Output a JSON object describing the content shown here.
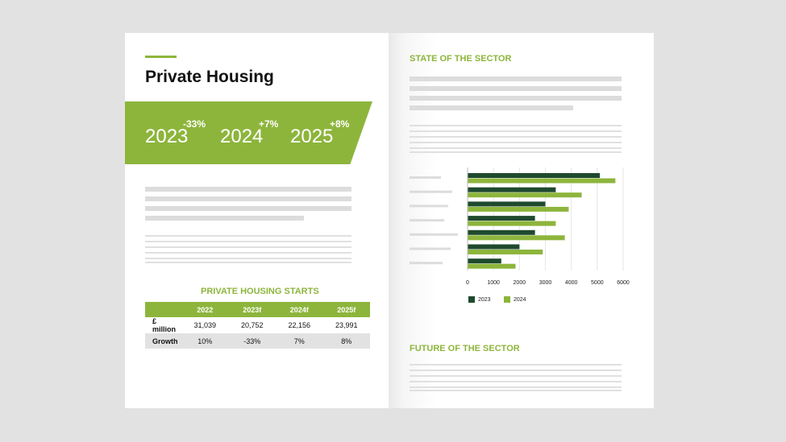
{
  "left_page": {
    "title": "Private Housing",
    "forecasts": [
      {
        "year": "2023",
        "change": "-33%"
      },
      {
        "year": "2024",
        "change": "+7%"
      },
      {
        "year": "2025",
        "change": "+8%"
      }
    ],
    "table": {
      "title": "PRIVATE HOUSING STARTS",
      "headers": [
        "",
        "2022",
        "2023f",
        "2024f",
        "2025f"
      ],
      "rows": [
        {
          "label": "£ million",
          "values": [
            "31,039",
            "20,752",
            "22,156",
            "23,991"
          ]
        },
        {
          "label": "Growth",
          "values": [
            "10%",
            "-33%",
            "7%",
            "8%"
          ]
        }
      ]
    }
  },
  "right_page": {
    "state_heading": "STATE OF THE SECTOR",
    "future_heading": "FUTURE OF THE SECTOR"
  },
  "colors": {
    "accent_green": "#8db53c",
    "dark_green": "#1e4a2e",
    "placeholder_gray": "#dcdcdc"
  },
  "chart_data": {
    "type": "bar",
    "orientation": "horizontal",
    "categories": [
      "",
      "",
      "",
      "",
      "",
      "",
      ""
    ],
    "series": [
      {
        "name": "2023",
        "color": "#1e4a2e",
        "values": [
          5100,
          3400,
          3000,
          2600,
          2600,
          2000,
          1300
        ]
      },
      {
        "name": "2024",
        "color": "#8db53c",
        "values": [
          5700,
          4400,
          3900,
          3400,
          3750,
          2900,
          1850
        ]
      }
    ],
    "xticks": [
      0,
      1000,
      2000,
      3000,
      4000,
      5000,
      6000
    ],
    "xlim": [
      0,
      6000
    ],
    "grid": true,
    "legend": "bottom-left",
    "title": "",
    "xlabel": "",
    "ylabel": ""
  }
}
